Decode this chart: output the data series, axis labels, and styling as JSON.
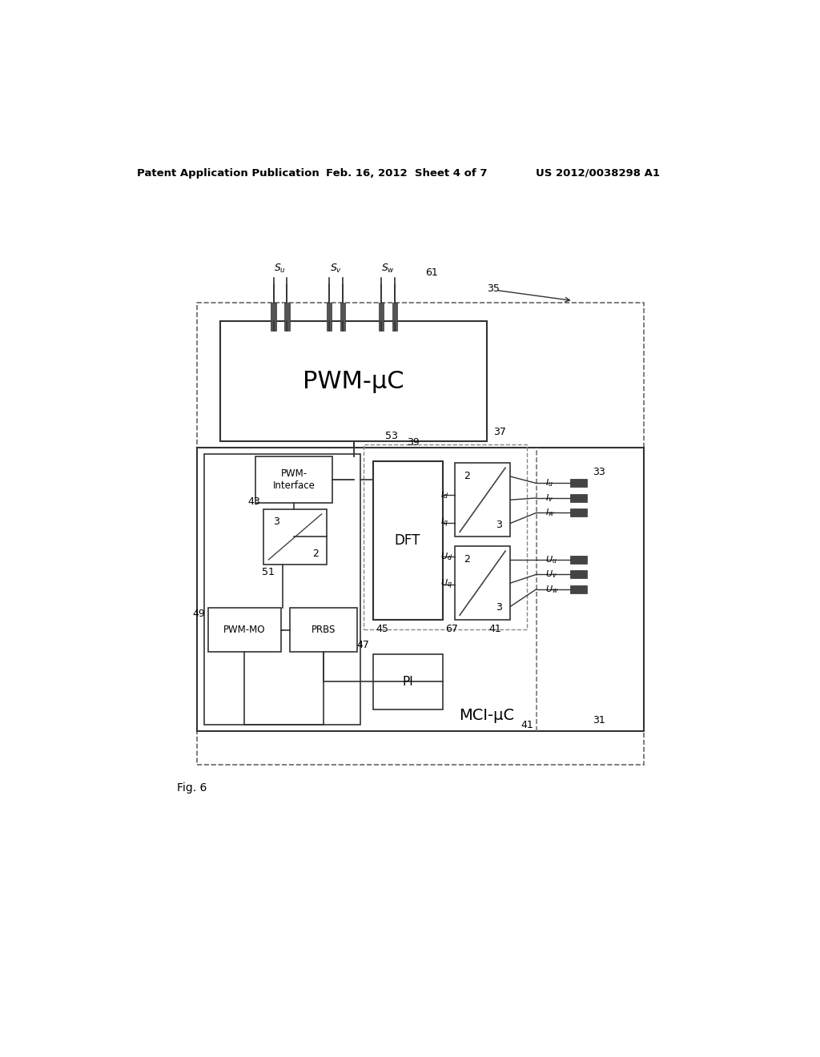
{
  "bg_color": "#ffffff",
  "header_left": "Patent Application Publication",
  "header_mid": "Feb. 16, 2012  Sheet 4 of 7",
  "header_right": "US 2012/0038298 A1",
  "fig_label": "Fig. 6"
}
